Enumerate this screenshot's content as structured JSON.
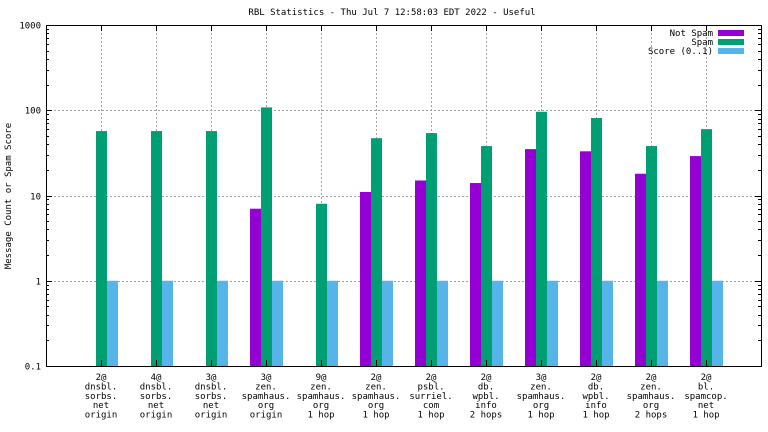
{
  "chart_data": {
    "type": "bar",
    "title": "RBL Statistics - Thu Jul  7 12:58:03 EDT 2022 - Useful",
    "xlabel": "",
    "ylabel": "Message Count or Spam Score",
    "yscale": "log",
    "ylim": [
      0.1,
      1000
    ],
    "yticks": [
      {
        "value": 0.1,
        "label": "0.1"
      },
      {
        "value": 1,
        "label": "1"
      },
      {
        "value": 10,
        "label": "10"
      },
      {
        "value": 100,
        "label": "100"
      },
      {
        "value": 1000,
        "label": "1000"
      }
    ],
    "grid": true,
    "legend_position": "top-right",
    "categories": [
      [
        "2@",
        "dnsbl.",
        "sorbs.",
        "net",
        "origin"
      ],
      [
        "4@",
        "dnsbl.",
        "sorbs.",
        "net",
        "origin"
      ],
      [
        "3@",
        "dnsbl.",
        "sorbs.",
        "net",
        "origin"
      ],
      [
        "3@",
        "zen.",
        "spamhaus.",
        "org",
        "origin"
      ],
      [
        "9@",
        "zen.",
        "spamhaus.",
        "org",
        "1 hop"
      ],
      [
        "2@",
        "zen.",
        "spamhaus.",
        "org",
        "1 hop"
      ],
      [
        "2@",
        "psbl.",
        "surriel.",
        "com",
        "1 hop"
      ],
      [
        "2@",
        "db.",
        "wpbl.",
        "info",
        "2 hops"
      ],
      [
        "3@",
        "zen.",
        "spamhaus.",
        "org",
        "1 hop"
      ],
      [
        "2@",
        "db.",
        "wpbl.",
        "info",
        "1 hop"
      ],
      [
        "2@",
        "zen.",
        "spamhaus.",
        "org",
        "2 hops"
      ],
      [
        "2@",
        "bl.",
        "spamcop.",
        "net",
        "1 hop"
      ]
    ],
    "series": [
      {
        "name": "Not Spam",
        "color": "#9400d3",
        "values": [
          null,
          null,
          null,
          7,
          null,
          11,
          15,
          14,
          35,
          33,
          18,
          29
        ]
      },
      {
        "name": "Spam",
        "color": "#009e73",
        "values": [
          57,
          57,
          57,
          108,
          8,
          47,
          54,
          38,
          96,
          81,
          38,
          60
        ]
      },
      {
        "name": "Score (0..1)",
        "color": "#56b4e9",
        "values": [
          1,
          1,
          1,
          1,
          1,
          1,
          1,
          1,
          1,
          1,
          1,
          1
        ]
      }
    ]
  }
}
